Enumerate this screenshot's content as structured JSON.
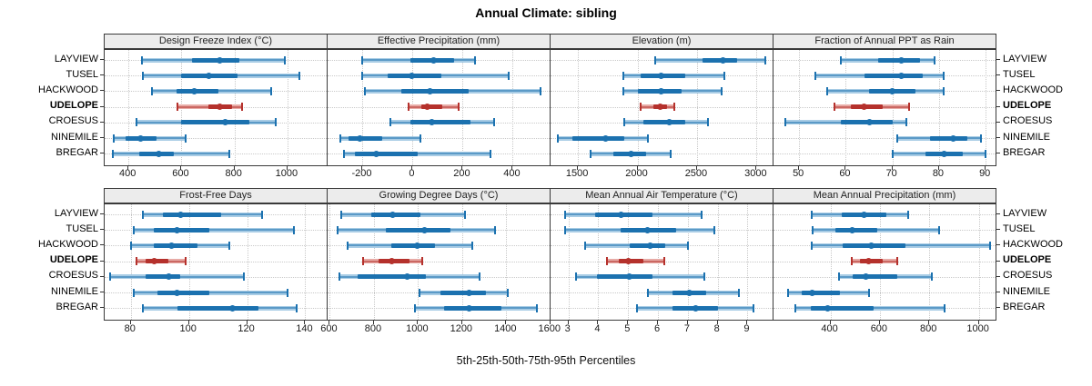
{
  "chart_data": {
    "type": "dotplot-intervals",
    "title": "Annual Climate: sibling",
    "caption": "5th-25th-50th-75th-95th Percentiles",
    "percentiles": [
      5,
      25,
      50,
      75,
      95
    ],
    "sites": [
      "LAYVIEW",
      "TUSEL",
      "HACKWOOD",
      "UDELOPE",
      "CROESUS",
      "NINEMILE",
      "BREGAR"
    ],
    "highlighted_site": "UDELOPE",
    "layout": {
      "rows": 2,
      "cols": 4,
      "grid": "dotted",
      "legend": "none",
      "site_labels": "both-sides"
    },
    "colors": {
      "series": "#1b71af",
      "series_band": "#a8cce5",
      "highlight": "#b5312c",
      "highlight_band": "#e7aba6",
      "grid": "#c9c9c9",
      "strip_bg": "#ececec",
      "panel_border": "#3a3a3a"
    },
    "panels": [
      {
        "title": "Design Freeze Index (°C)",
        "grid_row": 0,
        "grid_col": 0,
        "axis_min": 310,
        "axis_max": 1155,
        "ticks": [
          400,
          600,
          800,
          1000
        ],
        "series": [
          {
            "site": "LAYVIEW",
            "values": [
              450,
              640,
              745,
              820,
              990
            ]
          },
          {
            "site": "TUSEL",
            "values": [
              455,
              600,
              705,
              810,
              1045
            ]
          },
          {
            "site": "HACKWOOD",
            "values": [
              490,
              580,
              650,
              740,
              940
            ]
          },
          {
            "site": "UDELOPE",
            "values": [
              585,
              700,
              745,
              790,
              830
            ]
          },
          {
            "site": "CROESUS",
            "values": [
              430,
              600,
              765,
              855,
              955
            ]
          },
          {
            "site": "NINEMILE",
            "values": [
              345,
              390,
              445,
              505,
              615
            ]
          },
          {
            "site": "BREGAR",
            "values": [
              340,
              440,
              515,
              570,
              780
            ]
          }
        ]
      },
      {
        "title": "Effective Precipitation (mm)",
        "grid_row": 0,
        "grid_col": 1,
        "axis_min": -340,
        "axis_max": 555,
        "ticks": [
          -200,
          0,
          200,
          400
        ],
        "series": [
          {
            "site": "LAYVIEW",
            "values": [
              -200,
              -10,
              85,
              165,
              250
            ]
          },
          {
            "site": "TUSEL",
            "values": [
              -200,
              -100,
              -5,
              115,
              385
            ]
          },
          {
            "site": "HACKWOOD",
            "values": [
              -190,
              -45,
              70,
              225,
              510
            ]
          },
          {
            "site": "UDELOPE",
            "values": [
              -15,
              35,
              60,
              120,
              185
            ]
          },
          {
            "site": "CROESUS",
            "values": [
              -90,
              -10,
              75,
              230,
              325
            ]
          },
          {
            "site": "NINEMILE",
            "values": [
              -290,
              -255,
              -210,
              -120,
              30
            ]
          },
          {
            "site": "BREGAR",
            "values": [
              -275,
              -230,
              -145,
              20,
              310
            ]
          }
        ]
      },
      {
        "title": "Elevation (m)",
        "grid_row": 0,
        "grid_col": 2,
        "axis_min": 1270,
        "axis_max": 3150,
        "ticks": [
          1500,
          2000,
          2500,
          3000
        ],
        "series": [
          {
            "site": "LAYVIEW",
            "values": [
              2150,
              2550,
              2720,
              2840,
              3070
            ]
          },
          {
            "site": "TUSEL",
            "values": [
              1880,
              2030,
              2200,
              2400,
              2730
            ]
          },
          {
            "site": "HACKWOOD",
            "values": [
              1880,
              2000,
              2200,
              2370,
              2710
            ]
          },
          {
            "site": "UDELOPE",
            "values": [
              2030,
              2130,
              2190,
              2250,
              2310
            ]
          },
          {
            "site": "CROESUS",
            "values": [
              1890,
              2050,
              2270,
              2400,
              2590
            ]
          },
          {
            "site": "NINEMILE",
            "values": [
              1330,
              1450,
              1730,
              1890,
              2090
            ]
          },
          {
            "site": "BREGAR",
            "values": [
              1610,
              1800,
              1950,
              2070,
              2280
            ]
          }
        ]
      },
      {
        "title": "Fraction of Annual PPT as Rain",
        "grid_row": 0,
        "grid_col": 3,
        "axis_min": 44.5,
        "axis_max": 92.5,
        "ticks": [
          50,
          60,
          70,
          80,
          90
        ],
        "series": [
          {
            "site": "LAYVIEW",
            "values": [
              59,
              67,
              72,
              76,
              79
            ]
          },
          {
            "site": "TUSEL",
            "values": [
              53.5,
              64,
              72,
              76.5,
              81
            ]
          },
          {
            "site": "HACKWOOD",
            "values": [
              56,
              65,
              70,
              75,
              81
            ]
          },
          {
            "site": "UDELOPE",
            "values": [
              57.5,
              61,
              64,
              68,
              73.5
            ]
          },
          {
            "site": "CROESUS",
            "values": [
              47,
              59,
              65,
              70,
              73
            ]
          },
          {
            "site": "NINEMILE",
            "values": [
              71,
              78,
              83,
              86,
              89
            ]
          },
          {
            "site": "BREGAR",
            "values": [
              70,
              77,
              81,
              85,
              90
            ]
          }
        ]
      },
      {
        "title": "Frost-Free Days",
        "grid_row": 1,
        "grid_col": 0,
        "axis_min": 71,
        "axis_max": 148,
        "ticks": [
          80,
          100,
          120,
          140
        ],
        "series": [
          {
            "site": "LAYVIEW",
            "values": [
              84,
              91,
              97,
              111,
              125
            ]
          },
          {
            "site": "TUSEL",
            "values": [
              81,
              88,
              96,
              107,
              136
            ]
          },
          {
            "site": "HACKWOOD",
            "values": [
              80,
              88,
              94,
              103,
              114
            ]
          },
          {
            "site": "UDELOPE",
            "values": [
              82,
              85,
              88,
              93,
              99
            ]
          },
          {
            "site": "CROESUS",
            "values": [
              73,
              85,
              93,
              97,
              119
            ]
          },
          {
            "site": "NINEMILE",
            "values": [
              81,
              89,
              96,
              107,
              134
            ]
          },
          {
            "site": "BREGAR",
            "values": [
              84,
              96,
              115,
              124,
              137
            ]
          }
        ]
      },
      {
        "title": "Growing Degree Days (°C)",
        "grid_row": 1,
        "grid_col": 1,
        "axis_min": 590,
        "axis_max": 1605,
        "ticks": [
          600,
          800,
          1000,
          1200,
          1400,
          1600
        ],
        "series": [
          {
            "site": "LAYVIEW",
            "values": [
              650,
              790,
              885,
              1010,
              1215
            ]
          },
          {
            "site": "TUSEL",
            "values": [
              635,
              855,
              1030,
              1145,
              1350
            ]
          },
          {
            "site": "HACKWOOD",
            "values": [
              680,
              880,
              995,
              1075,
              1245
            ]
          },
          {
            "site": "UDELOPE",
            "values": [
              750,
              820,
              880,
              960,
              1020
            ]
          },
          {
            "site": "CROESUS",
            "values": [
              645,
              725,
              950,
              1035,
              1280
            ]
          },
          {
            "site": "NINEMILE",
            "values": [
              1005,
              1100,
              1230,
              1310,
              1405
            ]
          },
          {
            "site": "BREGAR",
            "values": [
              985,
              1120,
              1230,
              1380,
              1540
            ]
          }
        ]
      },
      {
        "title": "Mean Annual Air Temperature (°C)",
        "grid_row": 1,
        "grid_col": 2,
        "axis_min": 2.4,
        "axis_max": 9.9,
        "ticks": [
          3,
          4,
          5,
          6,
          7,
          8,
          9
        ],
        "series": [
          {
            "site": "LAYVIEW",
            "values": [
              2.9,
              3.9,
              4.75,
              5.8,
              7.45
            ]
          },
          {
            "site": "TUSEL",
            "values": [
              2.9,
              4.75,
              5.65,
              6.6,
              7.9
            ]
          },
          {
            "site": "HACKWOOD",
            "values": [
              3.55,
              5.05,
              5.75,
              6.25,
              7.0
            ]
          },
          {
            "site": "UDELOPE",
            "values": [
              4.3,
              4.7,
              5.0,
              5.5,
              6.2
            ]
          },
          {
            "site": "CROESUS",
            "values": [
              3.25,
              3.95,
              5.05,
              5.8,
              7.55
            ]
          },
          {
            "site": "NINEMILE",
            "values": [
              5.65,
              6.5,
              7.05,
              7.6,
              8.7
            ]
          },
          {
            "site": "BREGAR",
            "values": [
              5.3,
              6.5,
              7.25,
              8.0,
              9.2
            ]
          }
        ]
      },
      {
        "title": "Mean Annual Precipitation (mm)",
        "grid_row": 1,
        "grid_col": 3,
        "axis_min": 170,
        "axis_max": 1075,
        "ticks": [
          400,
          600,
          800,
          1000
        ],
        "series": [
          {
            "site": "LAYVIEW",
            "values": [
              325,
              445,
              535,
              625,
              715
            ]
          },
          {
            "site": "TUSEL",
            "values": [
              330,
              420,
              490,
              590,
              840
            ]
          },
          {
            "site": "HACKWOOD",
            "values": [
              325,
              450,
              565,
              705,
              1045
            ]
          },
          {
            "site": "UDELOPE",
            "values": [
              485,
              520,
              555,
              610,
              670
            ]
          },
          {
            "site": "CROESUS",
            "values": [
              435,
              490,
              545,
              670,
              810
            ]
          },
          {
            "site": "NINEMILE",
            "values": [
              230,
              285,
              325,
              440,
              555
            ]
          },
          {
            "site": "BREGAR",
            "values": [
              260,
              320,
              390,
              575,
              860
            ]
          }
        ]
      }
    ]
  }
}
